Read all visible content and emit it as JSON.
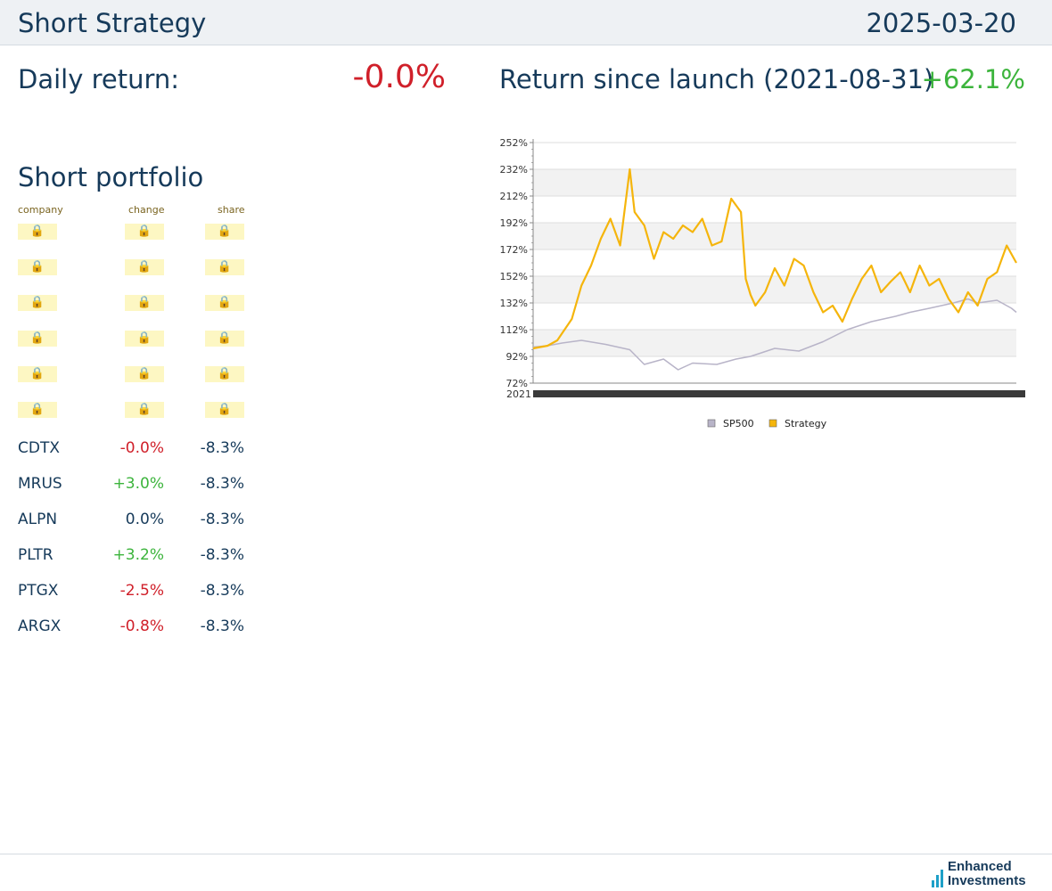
{
  "header": {
    "title": "Short Strategy",
    "date": "2025-03-20"
  },
  "summary": {
    "daily_label": "Daily return:",
    "daily_value": "-0.0%",
    "launch_label": "Return since launch (2021-08-31)",
    "launch_value": "+62.1%"
  },
  "portfolio": {
    "title": "Short portfolio",
    "columns": [
      "company",
      "change",
      "share"
    ],
    "locked_rows": 6,
    "rows": [
      {
        "company": "CDTX",
        "change": "-0.0%",
        "share": "-8.3%"
      },
      {
        "company": "MRUS",
        "change": "+3.0%",
        "share": "-8.3%"
      },
      {
        "company": "ALPN",
        "change": "0.0%",
        "share": "-8.3%"
      },
      {
        "company": "PLTR",
        "change": "+3.2%",
        "share": "-8.3%"
      },
      {
        "company": "PTGX",
        "change": "-2.5%",
        "share": "-8.3%"
      },
      {
        "company": "ARGX",
        "change": "-0.8%",
        "share": "-8.3%"
      }
    ]
  },
  "colors": {
    "negative": "#d0202a",
    "positive": "#3cb43c",
    "strategy": "#f5b50c",
    "sp500": "#b8b4c8",
    "text": "#163a5a"
  },
  "chart_data": {
    "type": "line",
    "ylim": [
      72,
      252
    ],
    "y_ticks": [
      "252%",
      "232%",
      "212%",
      "192%",
      "172%",
      "152%",
      "132%",
      "112%",
      "92%",
      "72%"
    ],
    "x_tick_start": "2021",
    "legend_position": "bottom-center",
    "grid": true,
    "series": [
      {
        "name": "SP500",
        "color": "#b8b4c8",
        "x": [
          0,
          0.03,
          0.06,
          0.1,
          0.15,
          0.2,
          0.23,
          0.27,
          0.3,
          0.33,
          0.38,
          0.42,
          0.45,
          0.5,
          0.55,
          0.6,
          0.65,
          0.7,
          0.75,
          0.78,
          0.82,
          0.87,
          0.9,
          0.92,
          0.96,
          0.99,
          1.0
        ],
        "values": [
          99,
          100,
          102,
          104,
          101,
          97,
          86,
          90,
          82,
          87,
          86,
          90,
          92,
          98,
          96,
          103,
          112,
          118,
          122,
          125,
          128,
          132,
          135,
          132,
          134,
          128,
          125
        ]
      },
      {
        "name": "Strategy",
        "color": "#f5b50c",
        "x": [
          0,
          0.03,
          0.05,
          0.08,
          0.1,
          0.12,
          0.14,
          0.16,
          0.18,
          0.2,
          0.21,
          0.23,
          0.25,
          0.27,
          0.29,
          0.31,
          0.33,
          0.35,
          0.37,
          0.39,
          0.41,
          0.43,
          0.44,
          0.45,
          0.46,
          0.48,
          0.5,
          0.52,
          0.54,
          0.56,
          0.58,
          0.6,
          0.62,
          0.64,
          0.66,
          0.68,
          0.7,
          0.72,
          0.74,
          0.76,
          0.78,
          0.8,
          0.82,
          0.84,
          0.86,
          0.88,
          0.9,
          0.92,
          0.94,
          0.96,
          0.98,
          1.0
        ],
        "values": [
          98,
          100,
          104,
          120,
          145,
          160,
          180,
          195,
          175,
          232,
          200,
          190,
          165,
          185,
          180,
          190,
          185,
          195,
          175,
          178,
          210,
          200,
          150,
          138,
          130,
          140,
          158,
          145,
          165,
          160,
          140,
          125,
          130,
          118,
          135,
          150,
          160,
          140,
          148,
          155,
          140,
          160,
          145,
          150,
          135,
          125,
          140,
          130,
          150,
          155,
          175,
          162
        ]
      }
    ]
  }
}
